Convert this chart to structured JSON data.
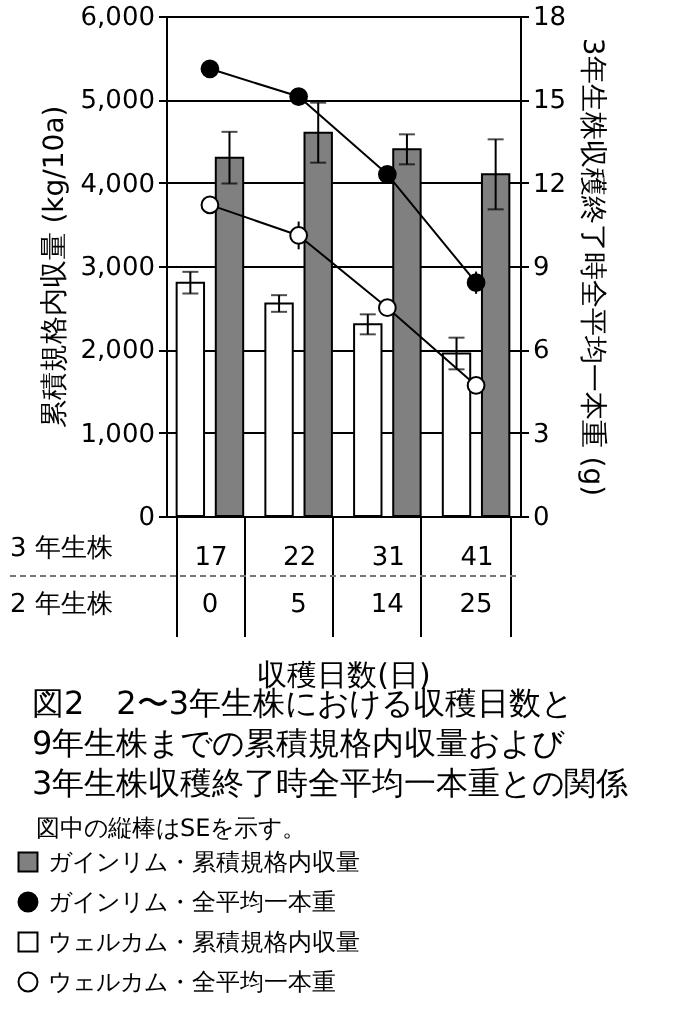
{
  "chart_data": {
    "type": "bar",
    "title": "図2　2〜3年生株における収穫日数と\n9年生株までの累積規格内収量および\n3年生株収穫終了時全平均一本重との関係",
    "xlabel": "収穫日数(日)",
    "ylabel": "累積規格内収量 (kg/10a)",
    "y2label": "3年生株収穫終了時全平均一本重 (g)",
    "categories": [
      "17",
      "22",
      "31",
      "41"
    ],
    "series": [
      {
        "name": "ガインリム・累積規格内収量",
        "type": "bar",
        "color": "#808080",
        "values": [
          4300,
          4600,
          4400,
          4100
        ],
        "errors": [
          310,
          360,
          180,
          420
        ]
      },
      {
        "name": "ガインリム・全平均一本重",
        "type": "line",
        "axis": "y2",
        "color": "#000000",
        "values": [
          16.1,
          15.1,
          12.3,
          8.4
        ],
        "errors": [
          0.2,
          0.2,
          0.3,
          0.4
        ]
      },
      {
        "name": "ウェルカム・累積規格内収量",
        "type": "bar",
        "color": "#ffffff",
        "values": [
          2800,
          2550,
          2300,
          1950
        ],
        "errors": [
          130,
          100,
          120,
          190
        ]
      },
      {
        "name": "ウェルカム・全平均一本重",
        "type": "line",
        "axis": "y2",
        "color": "#ffffff",
        "values": [
          11.2,
          10.1,
          7.5,
          4.7
        ],
        "errors": [
          0.3,
          0.5,
          0.2,
          0.3
        ]
      }
    ],
    "ylim": [
      0,
      6000
    ],
    "yticks": [
      {
        "value": 0,
        "label": "0"
      },
      {
        "value": 1000,
        "label": "1,000"
      },
      {
        "value": 2000,
        "label": "2,000"
      },
      {
        "value": 3000,
        "label": "3,000"
      },
      {
        "value": 4000,
        "label": "4,000"
      },
      {
        "value": 5000,
        "label": "5,000"
      },
      {
        "value": 6000,
        "label": "6,000"
      }
    ],
    "y2lim": [
      0,
      18
    ],
    "y2ticks": [
      0,
      3,
      6,
      9,
      12,
      15,
      18
    ],
    "grid": "y",
    "legend": "bottom",
    "marker": "circle",
    "line_style": "solid",
    "annotations": [
      "3 年生株",
      "2 年生株",
      "図中の縦棒はSEを示す。",
      "0",
      "5",
      "14",
      "25"
    ]
  }
}
